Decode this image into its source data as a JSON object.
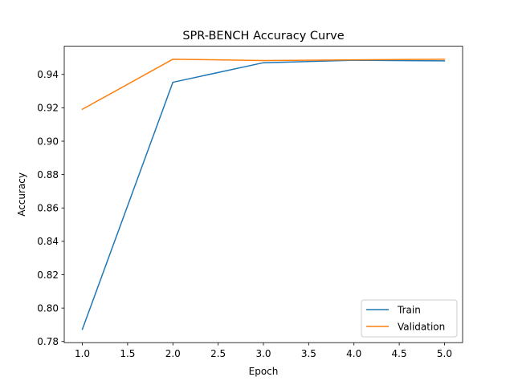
{
  "chart_data": {
    "type": "line",
    "title": "SPR-BENCH Accuracy Curve",
    "xlabel": "Epoch",
    "ylabel": "Accuracy",
    "x": [
      1,
      2,
      3,
      4,
      5
    ],
    "xlim": [
      0.8,
      5.2
    ],
    "ylim": [
      0.7793,
      0.9569
    ],
    "xticks": [
      "1.0",
      "1.5",
      "2.0",
      "2.5",
      "3.0",
      "3.5",
      "4.0",
      "4.5",
      "5.0"
    ],
    "yticks": [
      "0.78",
      "0.80",
      "0.82",
      "0.84",
      "0.86",
      "0.88",
      "0.90",
      "0.92",
      "0.94"
    ],
    "grid": false,
    "legend_position": "lower right",
    "series": [
      {
        "name": "Train",
        "color": "#1f77b4",
        "values": [
          0.7873,
          0.9353,
          0.947,
          0.9485,
          0.9481
        ]
      },
      {
        "name": "Validation",
        "color": "#ff7f0e",
        "values": [
          0.9191,
          0.9491,
          0.9483,
          0.9487,
          0.9491
        ]
      }
    ]
  }
}
